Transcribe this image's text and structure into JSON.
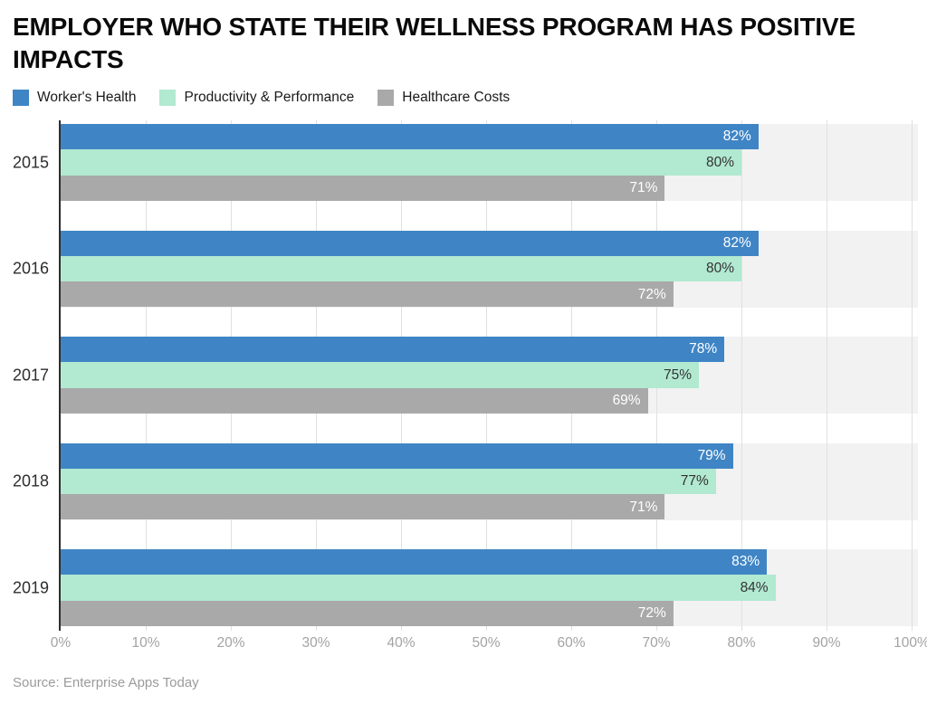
{
  "chart_data": {
    "type": "bar",
    "orientation": "horizontal",
    "title": "EMPLOYER WHO STATE THEIR WELLNESS PROGRAM HAS POSITIVE IMPACTS",
    "categories": [
      "2015",
      "2016",
      "2017",
      "2018",
      "2019"
    ],
    "series": [
      {
        "name": "Worker's Health",
        "color": "#3f85c5",
        "label_color": "#ffffff",
        "values": [
          82,
          82,
          78,
          79,
          83
        ]
      },
      {
        "name": "Productivity & Performance",
        "color": "#b1e9d1",
        "label_color": "#333333",
        "values": [
          80,
          80,
          75,
          77,
          84
        ]
      },
      {
        "name": "Healthcare Costs",
        "color": "#a9a9a9",
        "label_color": "#ffffff",
        "values": [
          71,
          72,
          69,
          71,
          72
        ]
      }
    ],
    "value_suffix": "%",
    "xlim": [
      0,
      100
    ],
    "x_ticks": [
      "0%",
      "10%",
      "20%",
      "30%",
      "40%",
      "50%",
      "60%",
      "70%",
      "80%",
      "90%",
      "100%"
    ],
    "grid": "vertical",
    "legend_position": "top-left",
    "row_band_color": "#f2f2f2",
    "source": "Source: Enterprise Apps Today"
  }
}
